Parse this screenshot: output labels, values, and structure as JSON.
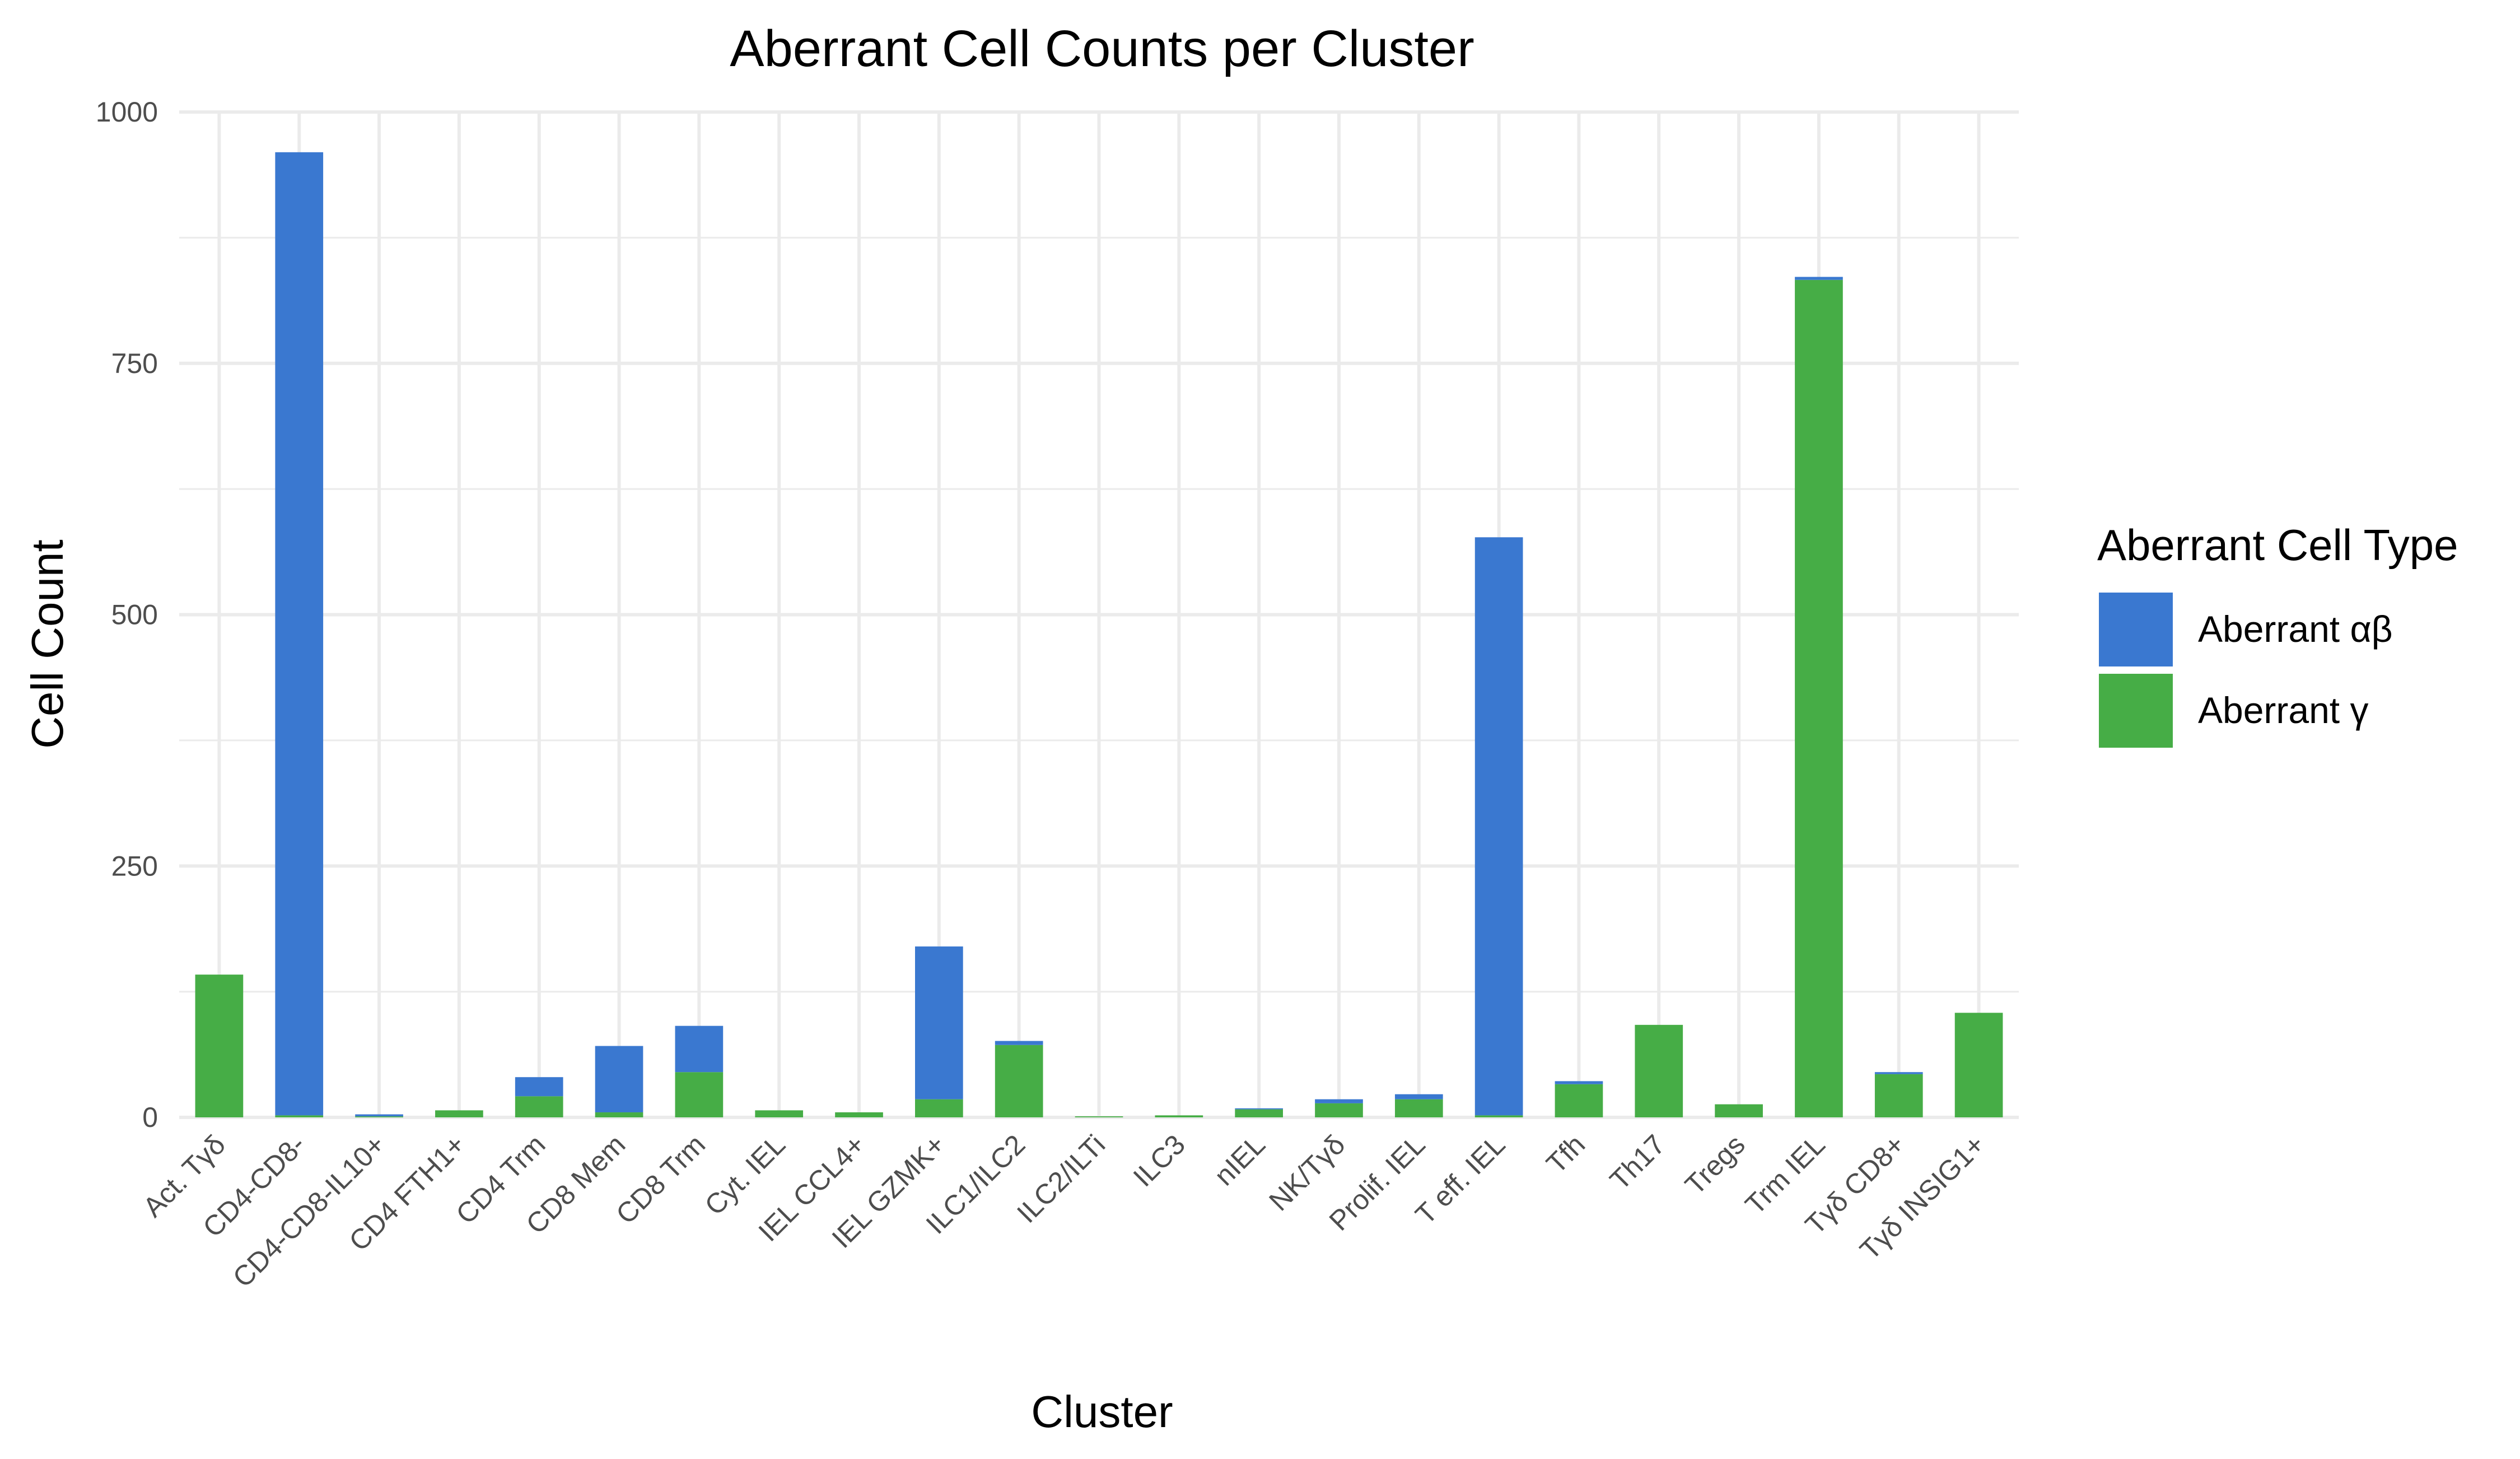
{
  "chart_data": {
    "type": "bar",
    "stacked": true,
    "title": "Aberrant Cell Counts per Cluster",
    "xlabel": "Cluster",
    "ylabel": "Cell Count",
    "ylim": [
      0,
      1000
    ],
    "yticks": [
      0,
      250,
      500,
      750,
      1000
    ],
    "grid": true,
    "legend": {
      "title": "Aberrant Cell Type",
      "position": "right"
    },
    "categories": [
      "Act. Tγδ",
      "CD4-CD8-",
      "CD4-CD8-IL10+",
      "CD4 FTH1+",
      "CD4 Trm",
      "CD8 Mem",
      "CD8 Trm",
      "Cyt. IEL",
      "IEL CCL4+",
      "IEL GZMK+",
      "ILC1/ILC2",
      "ILC2/ILTi",
      "ILC3",
      "nIEL",
      "NK/Tγδ",
      "Prolif. IEL",
      "T eff. IEL",
      "Tfh",
      "Th17",
      "Tregs",
      "Trm IEL",
      "Tγδ CD8+",
      "Tγδ INSIG1+"
    ],
    "series": [
      {
        "name": "Aberrant γ",
        "color": "#46AD46",
        "values": [
          142,
          2,
          1,
          7,
          21,
          5,
          45,
          7,
          5,
          18,
          72,
          1,
          2,
          8,
          14,
          18,
          2,
          33,
          92,
          13,
          833,
          43,
          104
        ]
      },
      {
        "name": "Aberrant αβ",
        "color": "#3A78D0",
        "values": [
          0,
          958,
          2,
          0,
          19,
          66,
          46,
          0,
          0,
          152,
          4,
          0,
          0,
          1,
          4,
          5,
          575,
          3,
          0,
          0,
          3,
          2,
          0
        ]
      }
    ]
  }
}
